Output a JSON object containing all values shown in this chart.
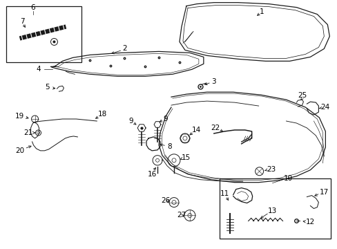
{
  "bg_color": "#ffffff",
  "fig_width": 4.89,
  "fig_height": 3.6,
  "dpi": 100,
  "line_color": "#1a1a1a",
  "text_color": "#000000",
  "font_size": 7.5
}
